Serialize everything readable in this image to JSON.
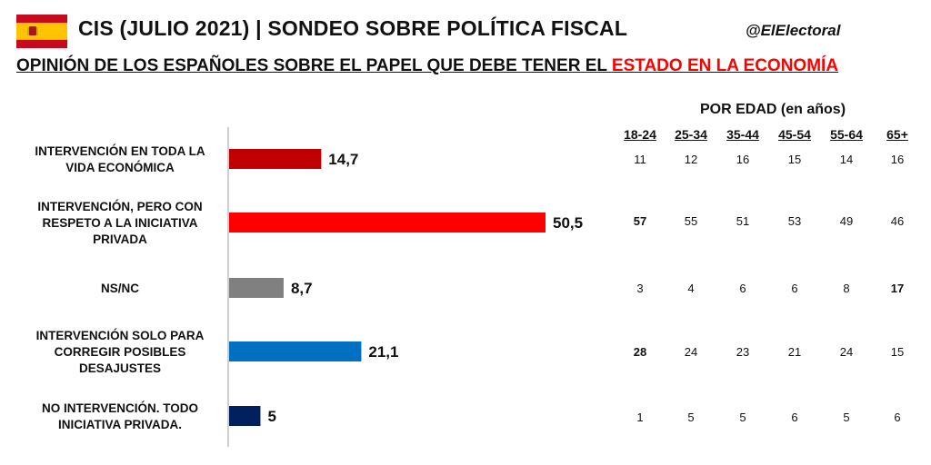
{
  "header": {
    "title": "CIS (JULIO 2021) | SONDEO SOBRE POLÍTICA FISCAL",
    "handle": "@ElElectoral",
    "subtitle_prefix": "OPINIÓN DE LOS ESPAÑOLES SOBRE EL PAPEL QUE DEBE TENER EL ",
    "subtitle_highlight": "ESTADO EN LA ECONOMÍA",
    "flag_icon": "spain-flag-icon"
  },
  "colors": {
    "highlight": "#ff0000",
    "flag_red": "#c60b1e",
    "flag_yellow": "#ffc400"
  },
  "chart_data": {
    "type": "bar",
    "orientation": "horizontal",
    "categories": [
      [
        "INTERVENCIÓN EN TODA LA",
        "VIDA ECONÓMICA"
      ],
      [
        "INTERVENCIÓN, PERO CON",
        "RESPETO A LA INICIATIVA",
        "PRIVADA"
      ],
      [
        "NS/NC"
      ],
      [
        "INTERVENCIÓN SOLO PARA",
        "CORREGIR POSIBLES",
        "DESAJUSTES"
      ],
      [
        "NO INTERVENCIÓN. TODO",
        "INICIATIVA PRIVADA."
      ]
    ],
    "values": [
      14.7,
      50.5,
      8.7,
      21.1,
      5
    ],
    "value_labels": [
      "14,7",
      "50,5",
      "8,7",
      "21,1",
      "5"
    ],
    "colors": [
      "#c00000",
      "#ff0000",
      "#808080",
      "#0070c0",
      "#002060"
    ],
    "xlim": [
      0,
      60
    ],
    "grid": false
  },
  "age_table": {
    "title": "POR EDAD (en años)",
    "columns": [
      "18-24",
      "25-34",
      "35-44",
      "45-54",
      "55-64",
      "65+"
    ],
    "rows": [
      [
        {
          "v": "11",
          "bold": false
        },
        {
          "v": "12",
          "bold": false
        },
        {
          "v": "16",
          "bold": false
        },
        {
          "v": "15",
          "bold": false
        },
        {
          "v": "14",
          "bold": false
        },
        {
          "v": "16",
          "bold": false
        }
      ],
      [
        {
          "v": "57",
          "bold": true
        },
        {
          "v": "55",
          "bold": false
        },
        {
          "v": "51",
          "bold": false
        },
        {
          "v": "53",
          "bold": false
        },
        {
          "v": "49",
          "bold": false
        },
        {
          "v": "46",
          "bold": false
        }
      ],
      [
        {
          "v": "3",
          "bold": false
        },
        {
          "v": "4",
          "bold": false
        },
        {
          "v": "6",
          "bold": false
        },
        {
          "v": "6",
          "bold": false
        },
        {
          "v": "8",
          "bold": false
        },
        {
          "v": "17",
          "bold": true
        }
      ],
      [
        {
          "v": "28",
          "bold": true
        },
        {
          "v": "24",
          "bold": false
        },
        {
          "v": "23",
          "bold": false
        },
        {
          "v": "21",
          "bold": false
        },
        {
          "v": "24",
          "bold": false
        },
        {
          "v": "15",
          "bold": false
        }
      ],
      [
        {
          "v": "1",
          "bold": false
        },
        {
          "v": "5",
          "bold": false
        },
        {
          "v": "5",
          "bold": false
        },
        {
          "v": "6",
          "bold": false
        },
        {
          "v": "5",
          "bold": false
        },
        {
          "v": "6",
          "bold": false
        }
      ]
    ]
  }
}
